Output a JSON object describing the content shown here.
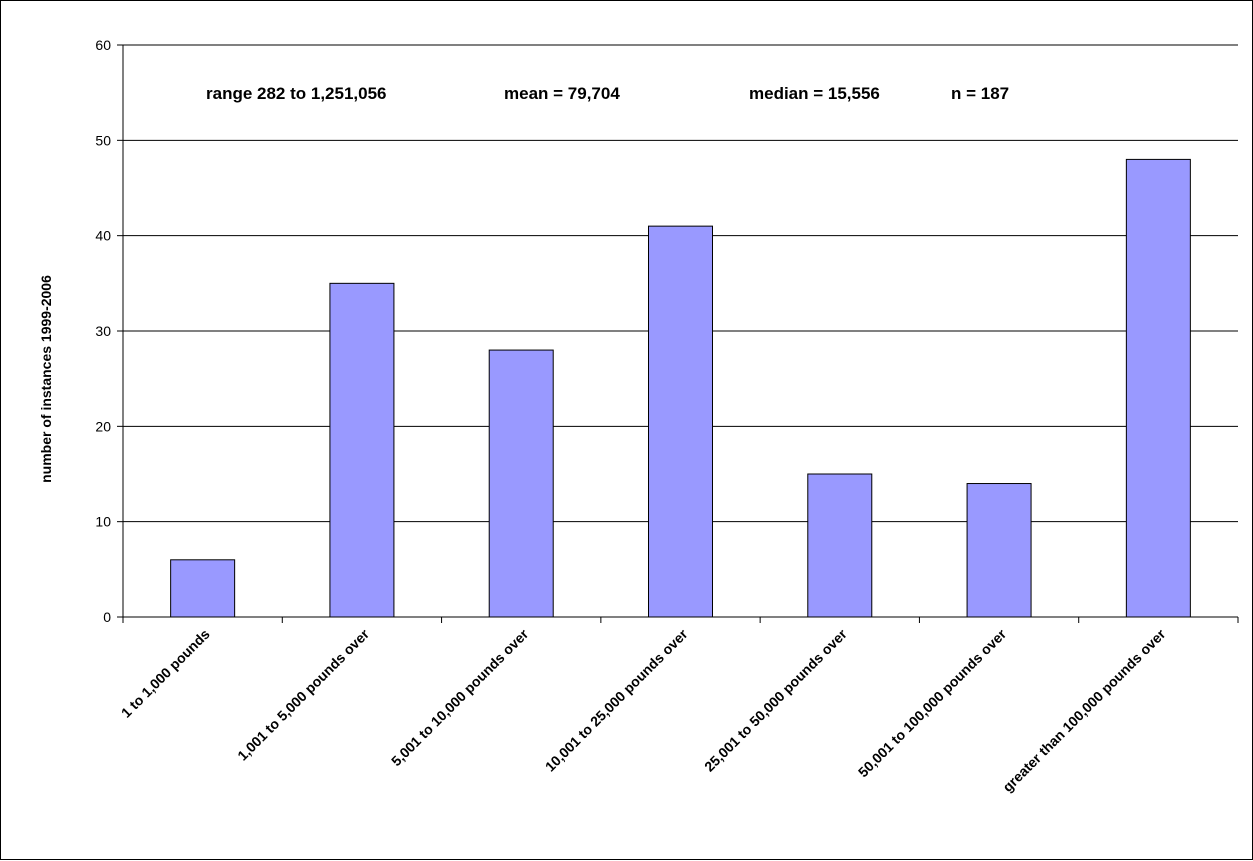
{
  "chart_data": {
    "type": "bar",
    "title": "",
    "xlabel": "",
    "ylabel": "number of instances 1999-2006",
    "ylim": [
      0,
      60
    ],
    "yticks": [
      0,
      10,
      20,
      30,
      40,
      50,
      60
    ],
    "grid": true,
    "legend": "none",
    "bar_color": "#9999ff",
    "bar_edge_color": "#000000",
    "categories": [
      "1 to 1,000 pounds",
      "1,001 to 5,000 pounds over",
      "5,001 to 10,000 pounds over",
      "10,001 to 25,000 pounds over",
      "25,001 to 50,000 pounds over",
      "50,001 to 100,000 pounds over",
      "greater than 100,000 pounds over"
    ],
    "values": [
      6,
      35,
      28,
      41,
      15,
      14,
      48
    ],
    "annotations": {
      "range": "range 282 to 1,251,056",
      "mean": "mean = 79,704",
      "median": "median = 15,556",
      "n": "n = 187"
    }
  }
}
